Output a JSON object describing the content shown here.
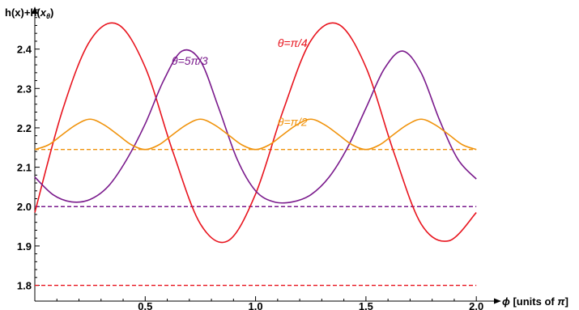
{
  "chart_data": {
    "type": "line",
    "title": "",
    "xlabel": {
      "symbol": "ϕ",
      "text": " [units of ",
      "unit": "π",
      "close": "]"
    },
    "ylabel": {
      "prefix": "h(x)+h(",
      "sub_var": "x",
      "sub_index": "θ",
      "suffix": ")"
    },
    "xlim": [
      0,
      2.08
    ],
    "ylim": [
      1.76,
      2.5
    ],
    "xticks": [
      {
        "value": 0.5,
        "label": "0.5"
      },
      {
        "value": 1.0,
        "label": "1.0"
      },
      {
        "value": 1.5,
        "label": "1.5"
      },
      {
        "value": 2.0,
        "label": "2.0"
      }
    ],
    "yticks": [
      {
        "value": 1.8,
        "label": "1.8"
      },
      {
        "value": 1.9,
        "label": "1.9"
      },
      {
        "value": 2.0,
        "label": "2.0"
      },
      {
        "value": 2.1,
        "label": "2.1"
      },
      {
        "value": 2.2,
        "label": "2.2"
      },
      {
        "value": 2.3,
        "label": "2.3"
      },
      {
        "value": 2.4,
        "label": "2.4"
      }
    ],
    "series": [
      {
        "name": "θ=π/4",
        "color": "#e8141e",
        "x": [
          0,
          0.125,
          0.25,
          0.375,
          0.5,
          0.625,
          0.75,
          0.875,
          1.0,
          1.125,
          1.25,
          1.375,
          1.5,
          1.625,
          1.75,
          1.875,
          2.0
        ],
        "y": [
          1.985,
          2.244,
          2.421,
          2.463,
          2.354,
          2.14,
          1.956,
          1.913,
          2.032,
          2.244,
          2.421,
          2.463,
          2.354,
          2.14,
          1.956,
          1.913,
          1.985
        ],
        "baseline": 1.8
      },
      {
        "name": "θ=5π/3",
        "color": "#7a1a8c",
        "x": [
          0,
          0.0833,
          0.1667,
          0.25,
          0.3333,
          0.4167,
          0.5,
          0.5833,
          0.6667,
          0.75,
          0.8333,
          0.9167,
          1.0,
          1.0833,
          1.1667,
          1.25,
          1.3333,
          1.4167,
          1.5,
          1.5833,
          1.6667,
          1.75,
          1.8333,
          1.9167,
          2.0
        ],
        "y": [
          2.075,
          2.03,
          2.012,
          2.018,
          2.052,
          2.12,
          2.21,
          2.32,
          2.395,
          2.37,
          2.25,
          2.12,
          2.04,
          2.012,
          2.012,
          2.03,
          2.075,
          2.15,
          2.25,
          2.35,
          2.395,
          2.34,
          2.22,
          2.12,
          2.07
        ],
        "baseline": 2.0
      },
      {
        "name": "θ=π/2",
        "color": "#f0930c",
        "x": [
          0,
          0.0625,
          0.125,
          0.1875,
          0.25,
          0.3125,
          0.375,
          0.4375,
          0.5,
          0.5625,
          0.625,
          0.6875,
          0.75,
          0.8125,
          0.875,
          0.9375,
          1.0,
          1.0625,
          1.125,
          1.1875,
          1.25,
          1.3125,
          1.375,
          1.4375,
          1.5,
          1.5625,
          1.625,
          1.6875,
          1.75,
          1.8125,
          1.875,
          1.9375,
          2.0
        ],
        "y": [
          2.145,
          2.157,
          2.183,
          2.208,
          2.222,
          2.208,
          2.183,
          2.157,
          2.145,
          2.157,
          2.183,
          2.208,
          2.222,
          2.208,
          2.183,
          2.157,
          2.145,
          2.157,
          2.183,
          2.208,
          2.222,
          2.208,
          2.183,
          2.157,
          2.145,
          2.157,
          2.183,
          2.208,
          2.222,
          2.208,
          2.183,
          2.157,
          2.145
        ],
        "baseline": 2.145
      }
    ],
    "annotations": [
      {
        "series": 1,
        "text": "θ=5π/3",
        "color": "#7a1a8c",
        "x": 0.62,
        "y": 2.36
      },
      {
        "series": 0,
        "text": "θ=π/4",
        "color": "#e8141e",
        "x": 1.1,
        "y": 2.405
      },
      {
        "series": 2,
        "text": "θ=π/2",
        "color": "#f0930c",
        "x": 1.1,
        "y": 2.205
      }
    ],
    "grid": false,
    "legend": "none"
  }
}
